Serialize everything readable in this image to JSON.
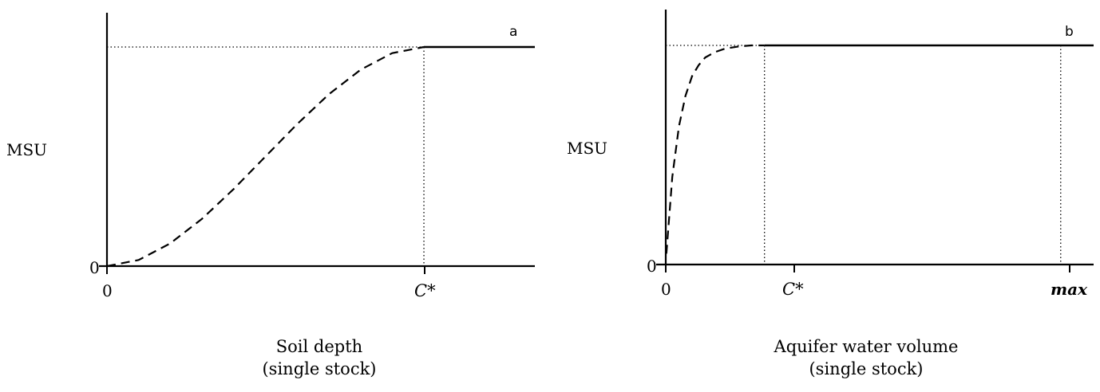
{
  "chart_data": [
    {
      "type": "line",
      "panel_label": "a",
      "ylabel": "MSU",
      "xlabel": "Soil depth",
      "xlabel_sub": "(single stock)",
      "x_ticks": [
        "0",
        "C*"
      ],
      "y_ticks": [
        "0"
      ],
      "xlim": [
        0,
        1.35
      ],
      "ylim": [
        0,
        1.12
      ],
      "threshold_x": 1,
      "plateau_y": 1,
      "series": [
        {
          "style": "dashed",
          "x": [
            0,
            0.1,
            0.2,
            0.3,
            0.4,
            0.5,
            0.6,
            0.7,
            0.8,
            0.9,
            1.0
          ],
          "y": [
            0.0,
            0.028,
            0.104,
            0.216,
            0.352,
            0.5,
            0.648,
            0.784,
            0.896,
            0.972,
            1.0
          ]
        },
        {
          "style": "solid",
          "x": [
            1.0,
            1.35
          ],
          "y": [
            1.0,
            1.0
          ]
        }
      ],
      "guides": "dotted horizontal at plateau from 0 to C*; dotted vertical at C*"
    },
    {
      "type": "line",
      "panel_label": "b",
      "ylabel": "MSU",
      "xlabel": "Aquifer water volume",
      "xlabel_sub": "(single stock)",
      "x_ticks": [
        "0",
        "C*",
        "max"
      ],
      "y_ticks": [
        "0"
      ],
      "xlim": [
        0,
        1.3
      ],
      "ylim": [
        0,
        1.12
      ],
      "threshold_x": 0.3,
      "max_x": 1.2,
      "plateau_y": 1,
      "series": [
        {
          "style": "dashed",
          "x": [
            0.002,
            0.02,
            0.04,
            0.06,
            0.08,
            0.1,
            0.12,
            0.15,
            0.18,
            0.22,
            0.26,
            0.3
          ],
          "y": [
            0.05,
            0.4,
            0.63,
            0.77,
            0.86,
            0.91,
            0.945,
            0.97,
            0.985,
            0.995,
            1.0,
            1.0
          ]
        },
        {
          "style": "solid",
          "x": [
            0.3,
            1.3
          ],
          "y": [
            1.0,
            1.0
          ]
        }
      ],
      "guides": "dotted horizontal at plateau from 0 to C*; dotted verticals at C* and max"
    }
  ]
}
